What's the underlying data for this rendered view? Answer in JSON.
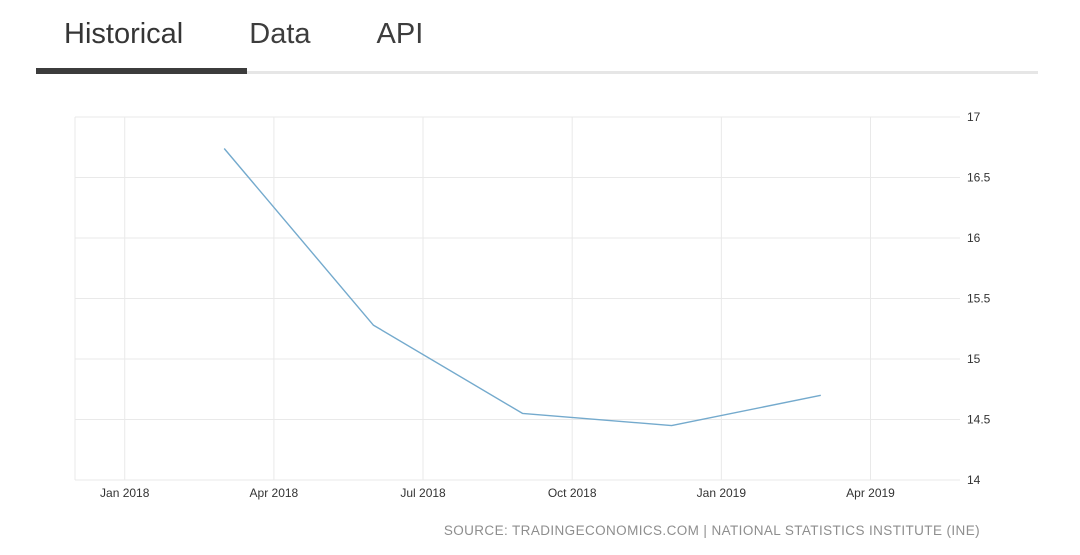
{
  "tabs": [
    {
      "label": "Historical",
      "active": true
    },
    {
      "label": "Data",
      "active": false
    },
    {
      "label": "API",
      "active": false
    }
  ],
  "source_text": "SOURCE: TRADINGECONOMICS.COM | NATIONAL STATISTICS INSTITUTE (INE)",
  "chart_data": {
    "type": "line",
    "x": [
      "2018-03",
      "2018-06",
      "2018-09",
      "2018-12",
      "2019-03"
    ],
    "values": [
      16.74,
      15.28,
      14.55,
      14.45,
      14.7
    ],
    "x_tick_labels": [
      "Jan 2018",
      "Apr 2018",
      "Jul 2018",
      "Oct 2018",
      "Jan 2019",
      "Apr 2019"
    ],
    "y_ticks": [
      14,
      14.5,
      15,
      15.5,
      16,
      16.5,
      17
    ],
    "ylim": [
      14,
      17
    ],
    "title": "",
    "xlabel": "",
    "ylabel": "",
    "legend": "none",
    "grid": true,
    "line_color": "#74aacd",
    "grid_color": "#e9e9e9"
  }
}
